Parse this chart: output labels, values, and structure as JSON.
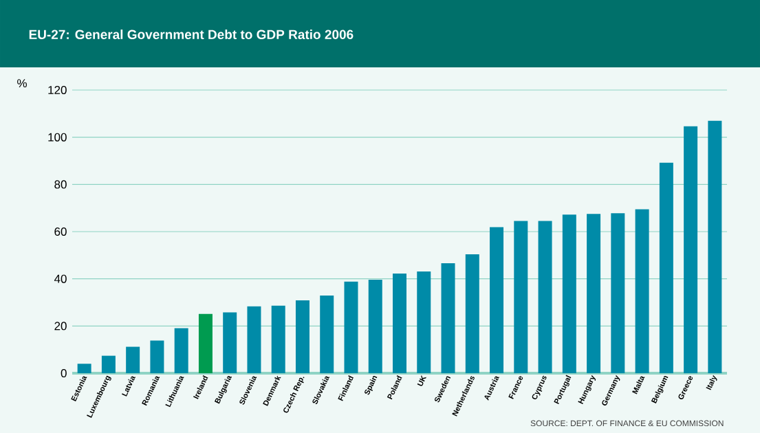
{
  "chart_data": {
    "type": "bar",
    "title": "EU-27: General Government Debt to GDP Ratio 2006",
    "ylabel": "%",
    "categories": [
      "Estonia",
      "Luxembourg",
      "Latvia",
      "Romania",
      "Lithuania",
      "Ireland",
      "Bulgaria",
      "Slovenia",
      "Denmark",
      "Czech Rep.",
      "Slovakia",
      "Finland",
      "Spain",
      "Poland",
      "UK",
      "Sweden",
      "Netherlands",
      "Austria",
      "France",
      "Cyprus",
      "Portugal",
      "Hungary",
      "Germany",
      "Malta",
      "Belgium",
      "Greece",
      "Italy"
    ],
    "values": [
      4.0,
      7.4,
      11.2,
      13.8,
      19.1,
      25.1,
      25.8,
      28.3,
      28.6,
      30.9,
      32.9,
      38.8,
      39.6,
      42.2,
      43.1,
      46.6,
      50.4,
      61.9,
      64.5,
      64.5,
      67.2,
      67.5,
      67.8,
      69.5,
      89.2,
      104.6,
      107.0
    ],
    "colors": [
      "#008ba8",
      "#008ba8",
      "#008ba8",
      "#008ba8",
      "#008ba8",
      "#009b50",
      "#008ba8",
      "#008ba8",
      "#008ba8",
      "#008ba8",
      "#008ba8",
      "#008ba8",
      "#008ba8",
      "#008ba8",
      "#008ba8",
      "#008ba8",
      "#008ba8",
      "#008ba8",
      "#008ba8",
      "#008ba8",
      "#008ba8",
      "#008ba8",
      "#008ba8",
      "#008ba8",
      "#008ba8",
      "#008ba8",
      "#008ba8"
    ],
    "ylim": [
      0,
      120
    ],
    "yticks": [
      0,
      20,
      40,
      60,
      80,
      100,
      120
    ],
    "grid": "y",
    "annotations": [
      "SOURCE: DEPT. OF FINANCE & EU COMMISSION"
    ]
  }
}
